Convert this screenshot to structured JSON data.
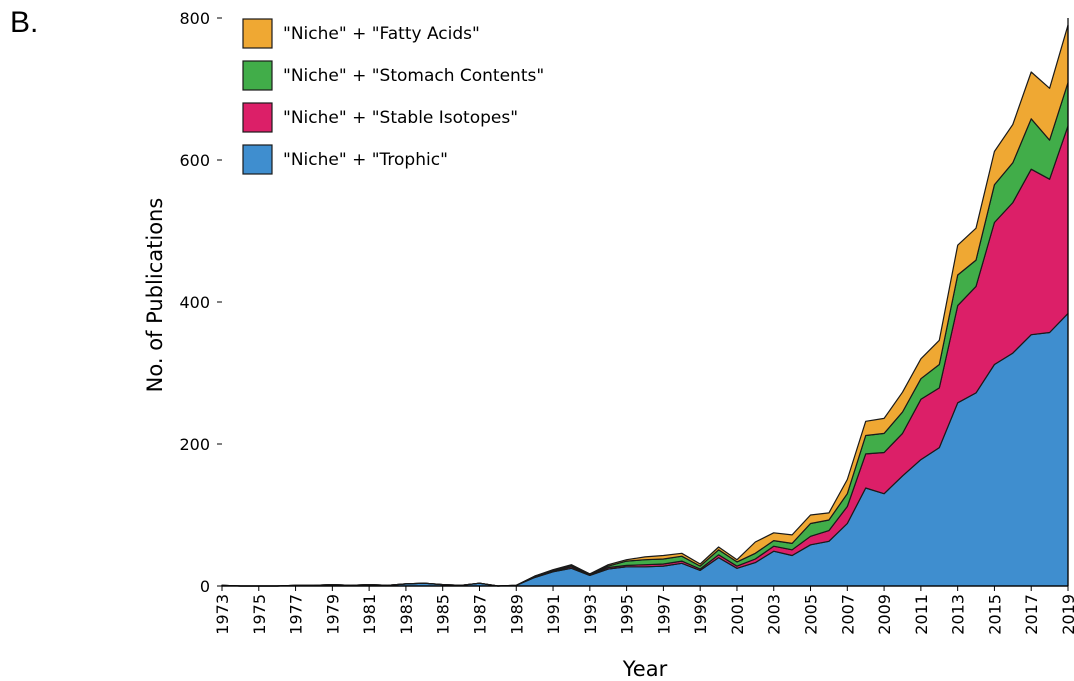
{
  "panel_label": "B.",
  "chart_data": {
    "type": "area",
    "stacked": true,
    "title": "",
    "xlabel": "Year",
    "ylabel": "No. of Publications",
    "xlim": [
      1973,
      2019
    ],
    "ylim": [
      0,
      800
    ],
    "x_ticks": [
      "1973",
      "1975",
      "1977",
      "1979",
      "1981",
      "1983",
      "1985",
      "1987",
      "1989",
      "1991",
      "1993",
      "1995",
      "1997",
      "1999",
      "2001",
      "2003",
      "2005",
      "2007",
      "2009",
      "2011",
      "2013",
      "2015",
      "2017",
      "2019"
    ],
    "y_ticks": [
      "0",
      "200",
      "400",
      "600",
      "800"
    ],
    "legend_position": "top-left",
    "grid": false,
    "x": [
      1973,
      1974,
      1975,
      1976,
      1977,
      1978,
      1979,
      1980,
      1981,
      1982,
      1983,
      1984,
      1985,
      1986,
      1987,
      1988,
      1989,
      1990,
      1991,
      1992,
      1993,
      1994,
      1995,
      1996,
      1997,
      1998,
      1999,
      2000,
      2001,
      2002,
      2003,
      2004,
      2005,
      2006,
      2007,
      2008,
      2009,
      2010,
      2011,
      2012,
      2013,
      2014,
      2015,
      2016,
      2017,
      2018,
      2019
    ],
    "series": [
      {
        "name": "\"Niche\" + \"Trophic\"",
        "color": "#3f8ecf",
        "values": [
          1,
          0,
          0,
          0,
          1,
          1,
          2,
          1,
          2,
          1,
          3,
          4,
          2,
          1,
          4,
          0,
          1,
          12,
          20,
          25,
          15,
          24,
          27,
          27,
          28,
          32,
          22,
          40,
          25,
          33,
          49,
          43,
          58,
          63,
          88,
          138,
          130,
          155,
          178,
          195,
          258,
          272,
          312,
          328,
          354,
          357,
          384
        ]
      },
      {
        "name": "\"Niche\" + \"Stable Isotopes\"",
        "color": "#dc1f68",
        "values": [
          0,
          0,
          0,
          0,
          0,
          0,
          0,
          0,
          0,
          0,
          0,
          0,
          0,
          0,
          0,
          0,
          0,
          1,
          1,
          2,
          1,
          2,
          2,
          3,
          3,
          3,
          2,
          4,
          3,
          5,
          7,
          8,
          12,
          15,
          24,
          48,
          58,
          60,
          85,
          84,
          137,
          150,
          200,
          212,
          233,
          216,
          264
        ]
      },
      {
        "name": "\"Niche\" + \"Stomach Contents\"",
        "color": "#41ad49",
        "values": [
          0,
          0,
          0,
          0,
          0,
          0,
          0,
          0,
          0,
          0,
          0,
          0,
          0,
          0,
          0,
          0,
          0,
          1,
          1,
          2,
          1,
          2,
          6,
          7,
          7,
          7,
          4,
          7,
          6,
          8,
          8,
          9,
          18,
          15,
          18,
          26,
          27,
          30,
          29,
          33,
          43,
          37,
          53,
          56,
          71,
          55,
          61
        ]
      },
      {
        "name": "\"Niche\" + \"Fatty Acids\"",
        "color": "#efa833",
        "values": [
          0,
          0,
          0,
          0,
          0,
          0,
          0,
          0,
          0,
          0,
          0,
          0,
          0,
          0,
          0,
          0,
          0,
          0,
          1,
          1,
          0,
          2,
          2,
          4,
          5,
          4,
          3,
          4,
          3,
          16,
          11,
          12,
          12,
          10,
          20,
          20,
          21,
          28,
          28,
          34,
          42,
          45,
          47,
          54,
          66,
          73,
          81
        ]
      }
    ]
  }
}
